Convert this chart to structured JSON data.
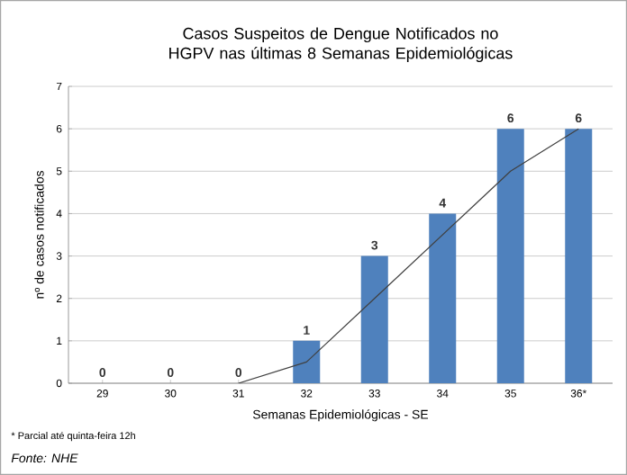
{
  "chart_data": {
    "type": "bar",
    "title": "Casos Suspeitos de Dengue Notificados  no HGPV nas últimas 8 Semanas Epidemiológicas",
    "xlabel": "Semanas Epidemiológicas - SE",
    "ylabel": "nº de casos notificados",
    "categories": [
      "29",
      "30",
      "31",
      "32",
      "33",
      "34",
      "35",
      "36*"
    ],
    "series": [
      {
        "color": "#4f81bd",
        "values": [
          0,
          0,
          0,
          1,
          3,
          4,
          6,
          6
        ],
        "value_labels": [
          "0",
          "0",
          "0",
          "1",
          "3",
          "4",
          "6",
          "6"
        ]
      },
      {
        "type": "line",
        "color": "#404040",
        "values": [
          null,
          null,
          0,
          0.5,
          2,
          3.5,
          5,
          6
        ]
      }
    ],
    "ylim": [
      0,
      7
    ],
    "yticks": [
      0,
      1,
      2,
      3,
      4,
      5,
      6,
      7
    ],
    "grid": "y",
    "annotations": [
      "* Parcial até quinta-feira 12h",
      "Fonte: NHE"
    ]
  }
}
